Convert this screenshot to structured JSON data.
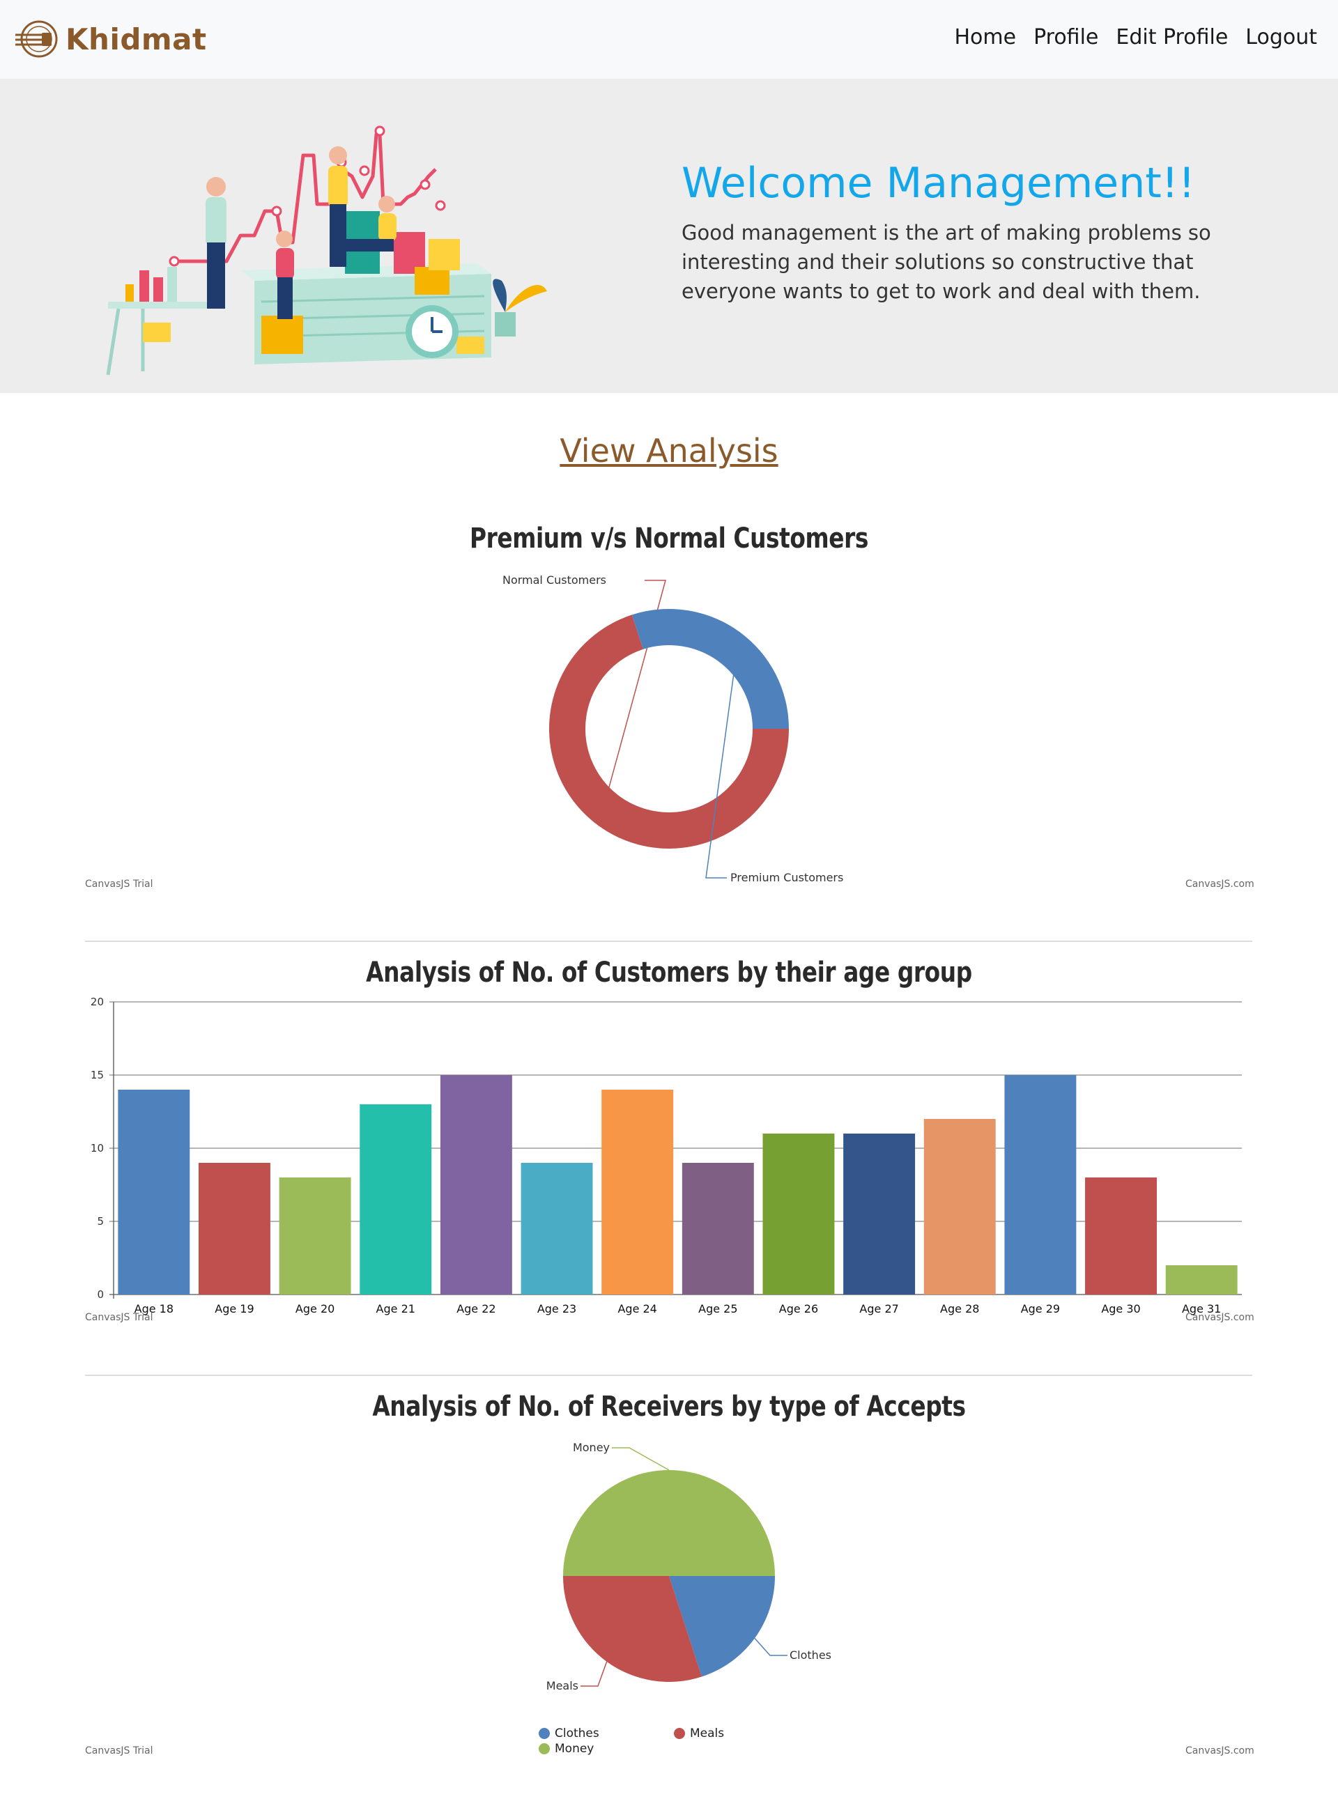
{
  "nav": {
    "brand": "Khidmat",
    "links": [
      "Home",
      "Profile",
      "Edit Profile",
      "Logout"
    ]
  },
  "hero": {
    "title": "Welcome Management!!",
    "text": "Good management is the art of making problems so interesting and their solutions so constructive that everyone wants to get to work and deal with them."
  },
  "view_analysis_label": "View Analysis",
  "colors": {
    "brand": "#8a5a2b",
    "hero_title": "#13a7ea",
    "series_red": "#c0504e",
    "series_blue": "#4f81bc",
    "series_green": "#9bbb58"
  },
  "watermarks": {
    "left": "CanvasJS Trial",
    "right": "CanvasJS.com"
  },
  "chart_data": [
    {
      "type": "pie",
      "subtype": "doughnut",
      "title": "Premium v/s Normal Customers",
      "labels": [
        "Normal Customers",
        "Premium Customers"
      ],
      "values": [
        70,
        30
      ],
      "colors": [
        "#c0504e",
        "#4f81bc"
      ]
    },
    {
      "type": "bar",
      "title": "Analysis of No. of Customers by their age group",
      "categories": [
        "Age 18",
        "Age 19",
        "Age 20",
        "Age 21",
        "Age 22",
        "Age 23",
        "Age 24",
        "Age 25",
        "Age 26",
        "Age 27",
        "Age 28",
        "Age 29",
        "Age 30",
        "Age 31"
      ],
      "values": [
        14,
        9,
        8,
        13,
        15,
        9,
        14,
        9,
        11,
        11,
        12,
        15,
        8,
        2
      ],
      "colors": [
        "#4f81bc",
        "#c0504e",
        "#9bbb58",
        "#23bfaa",
        "#8064a1",
        "#4aacc5",
        "#f79647",
        "#7f6084",
        "#77a033",
        "#33558b",
        "#e59566",
        "#4f81bc",
        "#c0504e",
        "#9bbb58"
      ],
      "ylim": [
        0,
        20
      ],
      "yticks": [
        0,
        5,
        10,
        15,
        20
      ],
      "grid": true
    },
    {
      "type": "pie",
      "title": "Analysis of No. of Receivers by type of Accepts",
      "labels": [
        "Clothes",
        "Meals",
        "Money"
      ],
      "values": [
        20,
        30,
        50
      ],
      "colors": [
        "#4f81bc",
        "#c0504e",
        "#9bbb58"
      ],
      "legend": "bottom"
    }
  ]
}
